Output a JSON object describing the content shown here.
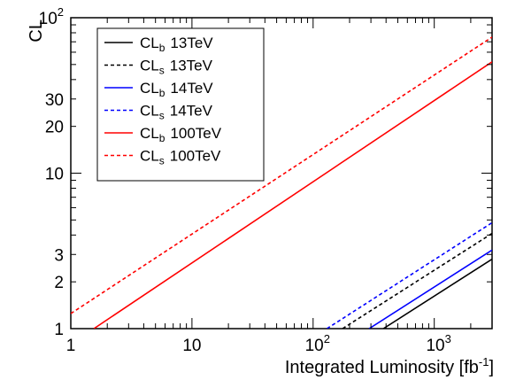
{
  "chart_data": {
    "type": "line",
    "title": "",
    "xlabel": {
      "main": "Integrated Luminosity [fb",
      "sup": "-1",
      "close": "]"
    },
    "ylabel": "CL",
    "xscale": "log",
    "yscale": "log",
    "xlim": [
      1,
      3000
    ],
    "ylim": [
      1,
      100
    ],
    "grid": false,
    "legend_position": "top-left",
    "x_ticks": [
      {
        "value": 1,
        "base": "1",
        "exp": ""
      },
      {
        "value": 10,
        "base": "10",
        "exp": ""
      },
      {
        "value": 100,
        "base": "10",
        "exp": "2"
      },
      {
        "value": 1000,
        "base": "10",
        "exp": "3"
      }
    ],
    "y_ticks": [
      {
        "value": 1,
        "base": "1",
        "exp": ""
      },
      {
        "value": 2,
        "base": "2",
        "exp": ""
      },
      {
        "value": 3,
        "base": "3",
        "exp": ""
      },
      {
        "value": 10,
        "base": "10",
        "exp": ""
      },
      {
        "value": 20,
        "base": "20",
        "exp": ""
      },
      {
        "value": 30,
        "base": "30",
        "exp": ""
      },
      {
        "value": 100,
        "base": "10",
        "exp": "2"
      }
    ],
    "series": [
      {
        "name": "CL_b 13TeV",
        "label_main": "CL",
        "label_sub": "b",
        "label_rest": "13TeV",
        "color": "#000000",
        "dash": "solid",
        "x": [
          380,
          3000
        ],
        "y": [
          1,
          2.8
        ]
      },
      {
        "name": "CL_s 13TeV",
        "label_main": "CL",
        "label_sub": "s",
        "label_rest": "13TeV",
        "color": "#000000",
        "dash": "dashed",
        "x": [
          175,
          3000
        ],
        "y": [
          1,
          4.1
        ]
      },
      {
        "name": "CL_b 14TeV",
        "label_main": "CL",
        "label_sub": "b",
        "label_rest": "14TeV",
        "color": "#0000ff",
        "dash": "solid",
        "x": [
          290,
          3000
        ],
        "y": [
          1,
          3.2
        ]
      },
      {
        "name": "CL_s 14TeV",
        "label_main": "CL",
        "label_sub": "s",
        "label_rest": "14TeV",
        "color": "#0000ff",
        "dash": "dashed",
        "x": [
          130,
          3000
        ],
        "y": [
          1,
          4.8
        ]
      },
      {
        "name": "CL_b 100TeV",
        "label_main": "CL",
        "label_sub": "b",
        "label_rest": "100TeV",
        "color": "#ff0000",
        "dash": "solid",
        "x": [
          1.55,
          3000
        ],
        "y": [
          1,
          52
        ]
      },
      {
        "name": "CL_s 100TeV",
        "label_main": "CL",
        "label_sub": "s",
        "label_rest": "100TeV",
        "color": "#ff0000",
        "dash": "dashed",
        "x": [
          1,
          3000
        ],
        "y": [
          1.25,
          75
        ]
      }
    ]
  }
}
